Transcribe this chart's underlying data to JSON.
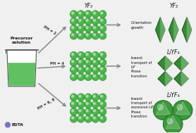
{
  "bg_color": "#f0f0f0",
  "green_sphere": "#4ab84a",
  "green_sphere_outline": "#2d7a2d",
  "green_shape": "#3a9a3a",
  "green_shape_outline": "#1a5c1a",
  "gray_arrow": "#888888",
  "text_color": "#111111",
  "beaker_fill": "#4dbb4d",
  "beaker_outline": "#555555",
  "edta_dot_color": "#7777bb",
  "ph_labels": [
    "PH = 2",
    "PH = 4",
    "PH = 6, 8"
  ],
  "process_label_top": "Orientation\ngrowth",
  "process_label_mid": "Inward\ntransport of\nLiF\nPhase\ntransition",
  "process_label_bot": "Inward\ntransport of\nexcessive LiF\nPhase\ntransition",
  "crystal_labels": [
    "YF₃",
    "LiYF₄",
    "LiYF₄"
  ],
  "sphere_label": "YF₃",
  "precursor_label": "Precursor\nsolution",
  "edta_label": "EDTA"
}
